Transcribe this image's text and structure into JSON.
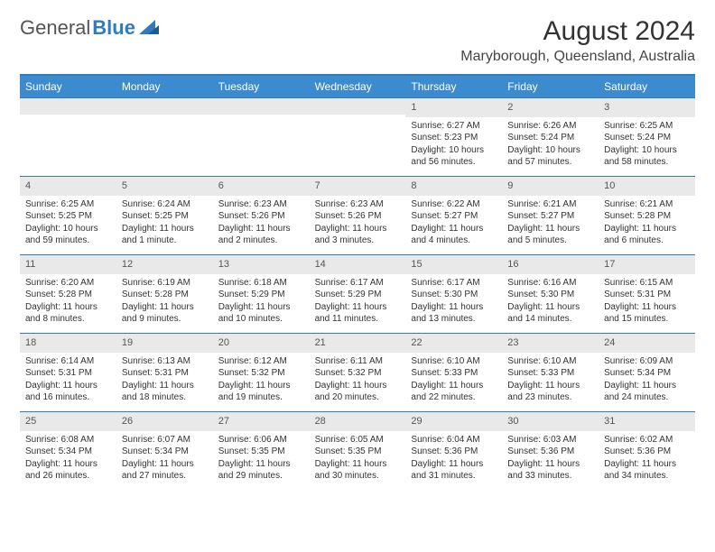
{
  "logo": {
    "part1": "General",
    "part2": "Blue"
  },
  "title": "August 2024",
  "location": "Maryborough, Queensland, Australia",
  "colors": {
    "accent": "#2f7bbf",
    "header_bg": "#3d8bcf",
    "daynum_bg": "#e9e9e9",
    "text": "#333333"
  },
  "day_labels": [
    "Sunday",
    "Monday",
    "Tuesday",
    "Wednesday",
    "Thursday",
    "Friday",
    "Saturday"
  ],
  "weeks": [
    [
      null,
      null,
      null,
      null,
      {
        "n": "1",
        "sr": "Sunrise: 6:27 AM",
        "ss": "Sunset: 5:23 PM",
        "d1": "Daylight: 10 hours",
        "d2": "and 56 minutes."
      },
      {
        "n": "2",
        "sr": "Sunrise: 6:26 AM",
        "ss": "Sunset: 5:24 PM",
        "d1": "Daylight: 10 hours",
        "d2": "and 57 minutes."
      },
      {
        "n": "3",
        "sr": "Sunrise: 6:25 AM",
        "ss": "Sunset: 5:24 PM",
        "d1": "Daylight: 10 hours",
        "d2": "and 58 minutes."
      }
    ],
    [
      {
        "n": "4",
        "sr": "Sunrise: 6:25 AM",
        "ss": "Sunset: 5:25 PM",
        "d1": "Daylight: 10 hours",
        "d2": "and 59 minutes."
      },
      {
        "n": "5",
        "sr": "Sunrise: 6:24 AM",
        "ss": "Sunset: 5:25 PM",
        "d1": "Daylight: 11 hours",
        "d2": "and 1 minute."
      },
      {
        "n": "6",
        "sr": "Sunrise: 6:23 AM",
        "ss": "Sunset: 5:26 PM",
        "d1": "Daylight: 11 hours",
        "d2": "and 2 minutes."
      },
      {
        "n": "7",
        "sr": "Sunrise: 6:23 AM",
        "ss": "Sunset: 5:26 PM",
        "d1": "Daylight: 11 hours",
        "d2": "and 3 minutes."
      },
      {
        "n": "8",
        "sr": "Sunrise: 6:22 AM",
        "ss": "Sunset: 5:27 PM",
        "d1": "Daylight: 11 hours",
        "d2": "and 4 minutes."
      },
      {
        "n": "9",
        "sr": "Sunrise: 6:21 AM",
        "ss": "Sunset: 5:27 PM",
        "d1": "Daylight: 11 hours",
        "d2": "and 5 minutes."
      },
      {
        "n": "10",
        "sr": "Sunrise: 6:21 AM",
        "ss": "Sunset: 5:28 PM",
        "d1": "Daylight: 11 hours",
        "d2": "and 6 minutes."
      }
    ],
    [
      {
        "n": "11",
        "sr": "Sunrise: 6:20 AM",
        "ss": "Sunset: 5:28 PM",
        "d1": "Daylight: 11 hours",
        "d2": "and 8 minutes."
      },
      {
        "n": "12",
        "sr": "Sunrise: 6:19 AM",
        "ss": "Sunset: 5:28 PM",
        "d1": "Daylight: 11 hours",
        "d2": "and 9 minutes."
      },
      {
        "n": "13",
        "sr": "Sunrise: 6:18 AM",
        "ss": "Sunset: 5:29 PM",
        "d1": "Daylight: 11 hours",
        "d2": "and 10 minutes."
      },
      {
        "n": "14",
        "sr": "Sunrise: 6:17 AM",
        "ss": "Sunset: 5:29 PM",
        "d1": "Daylight: 11 hours",
        "d2": "and 11 minutes."
      },
      {
        "n": "15",
        "sr": "Sunrise: 6:17 AM",
        "ss": "Sunset: 5:30 PM",
        "d1": "Daylight: 11 hours",
        "d2": "and 13 minutes."
      },
      {
        "n": "16",
        "sr": "Sunrise: 6:16 AM",
        "ss": "Sunset: 5:30 PM",
        "d1": "Daylight: 11 hours",
        "d2": "and 14 minutes."
      },
      {
        "n": "17",
        "sr": "Sunrise: 6:15 AM",
        "ss": "Sunset: 5:31 PM",
        "d1": "Daylight: 11 hours",
        "d2": "and 15 minutes."
      }
    ],
    [
      {
        "n": "18",
        "sr": "Sunrise: 6:14 AM",
        "ss": "Sunset: 5:31 PM",
        "d1": "Daylight: 11 hours",
        "d2": "and 16 minutes."
      },
      {
        "n": "19",
        "sr": "Sunrise: 6:13 AM",
        "ss": "Sunset: 5:31 PM",
        "d1": "Daylight: 11 hours",
        "d2": "and 18 minutes."
      },
      {
        "n": "20",
        "sr": "Sunrise: 6:12 AM",
        "ss": "Sunset: 5:32 PM",
        "d1": "Daylight: 11 hours",
        "d2": "and 19 minutes."
      },
      {
        "n": "21",
        "sr": "Sunrise: 6:11 AM",
        "ss": "Sunset: 5:32 PM",
        "d1": "Daylight: 11 hours",
        "d2": "and 20 minutes."
      },
      {
        "n": "22",
        "sr": "Sunrise: 6:10 AM",
        "ss": "Sunset: 5:33 PM",
        "d1": "Daylight: 11 hours",
        "d2": "and 22 minutes."
      },
      {
        "n": "23",
        "sr": "Sunrise: 6:10 AM",
        "ss": "Sunset: 5:33 PM",
        "d1": "Daylight: 11 hours",
        "d2": "and 23 minutes."
      },
      {
        "n": "24",
        "sr": "Sunrise: 6:09 AM",
        "ss": "Sunset: 5:34 PM",
        "d1": "Daylight: 11 hours",
        "d2": "and 24 minutes."
      }
    ],
    [
      {
        "n": "25",
        "sr": "Sunrise: 6:08 AM",
        "ss": "Sunset: 5:34 PM",
        "d1": "Daylight: 11 hours",
        "d2": "and 26 minutes."
      },
      {
        "n": "26",
        "sr": "Sunrise: 6:07 AM",
        "ss": "Sunset: 5:34 PM",
        "d1": "Daylight: 11 hours",
        "d2": "and 27 minutes."
      },
      {
        "n": "27",
        "sr": "Sunrise: 6:06 AM",
        "ss": "Sunset: 5:35 PM",
        "d1": "Daylight: 11 hours",
        "d2": "and 29 minutes."
      },
      {
        "n": "28",
        "sr": "Sunrise: 6:05 AM",
        "ss": "Sunset: 5:35 PM",
        "d1": "Daylight: 11 hours",
        "d2": "and 30 minutes."
      },
      {
        "n": "29",
        "sr": "Sunrise: 6:04 AM",
        "ss": "Sunset: 5:36 PM",
        "d1": "Daylight: 11 hours",
        "d2": "and 31 minutes."
      },
      {
        "n": "30",
        "sr": "Sunrise: 6:03 AM",
        "ss": "Sunset: 5:36 PM",
        "d1": "Daylight: 11 hours",
        "d2": "and 33 minutes."
      },
      {
        "n": "31",
        "sr": "Sunrise: 6:02 AM",
        "ss": "Sunset: 5:36 PM",
        "d1": "Daylight: 11 hours",
        "d2": "and 34 minutes."
      }
    ]
  ]
}
